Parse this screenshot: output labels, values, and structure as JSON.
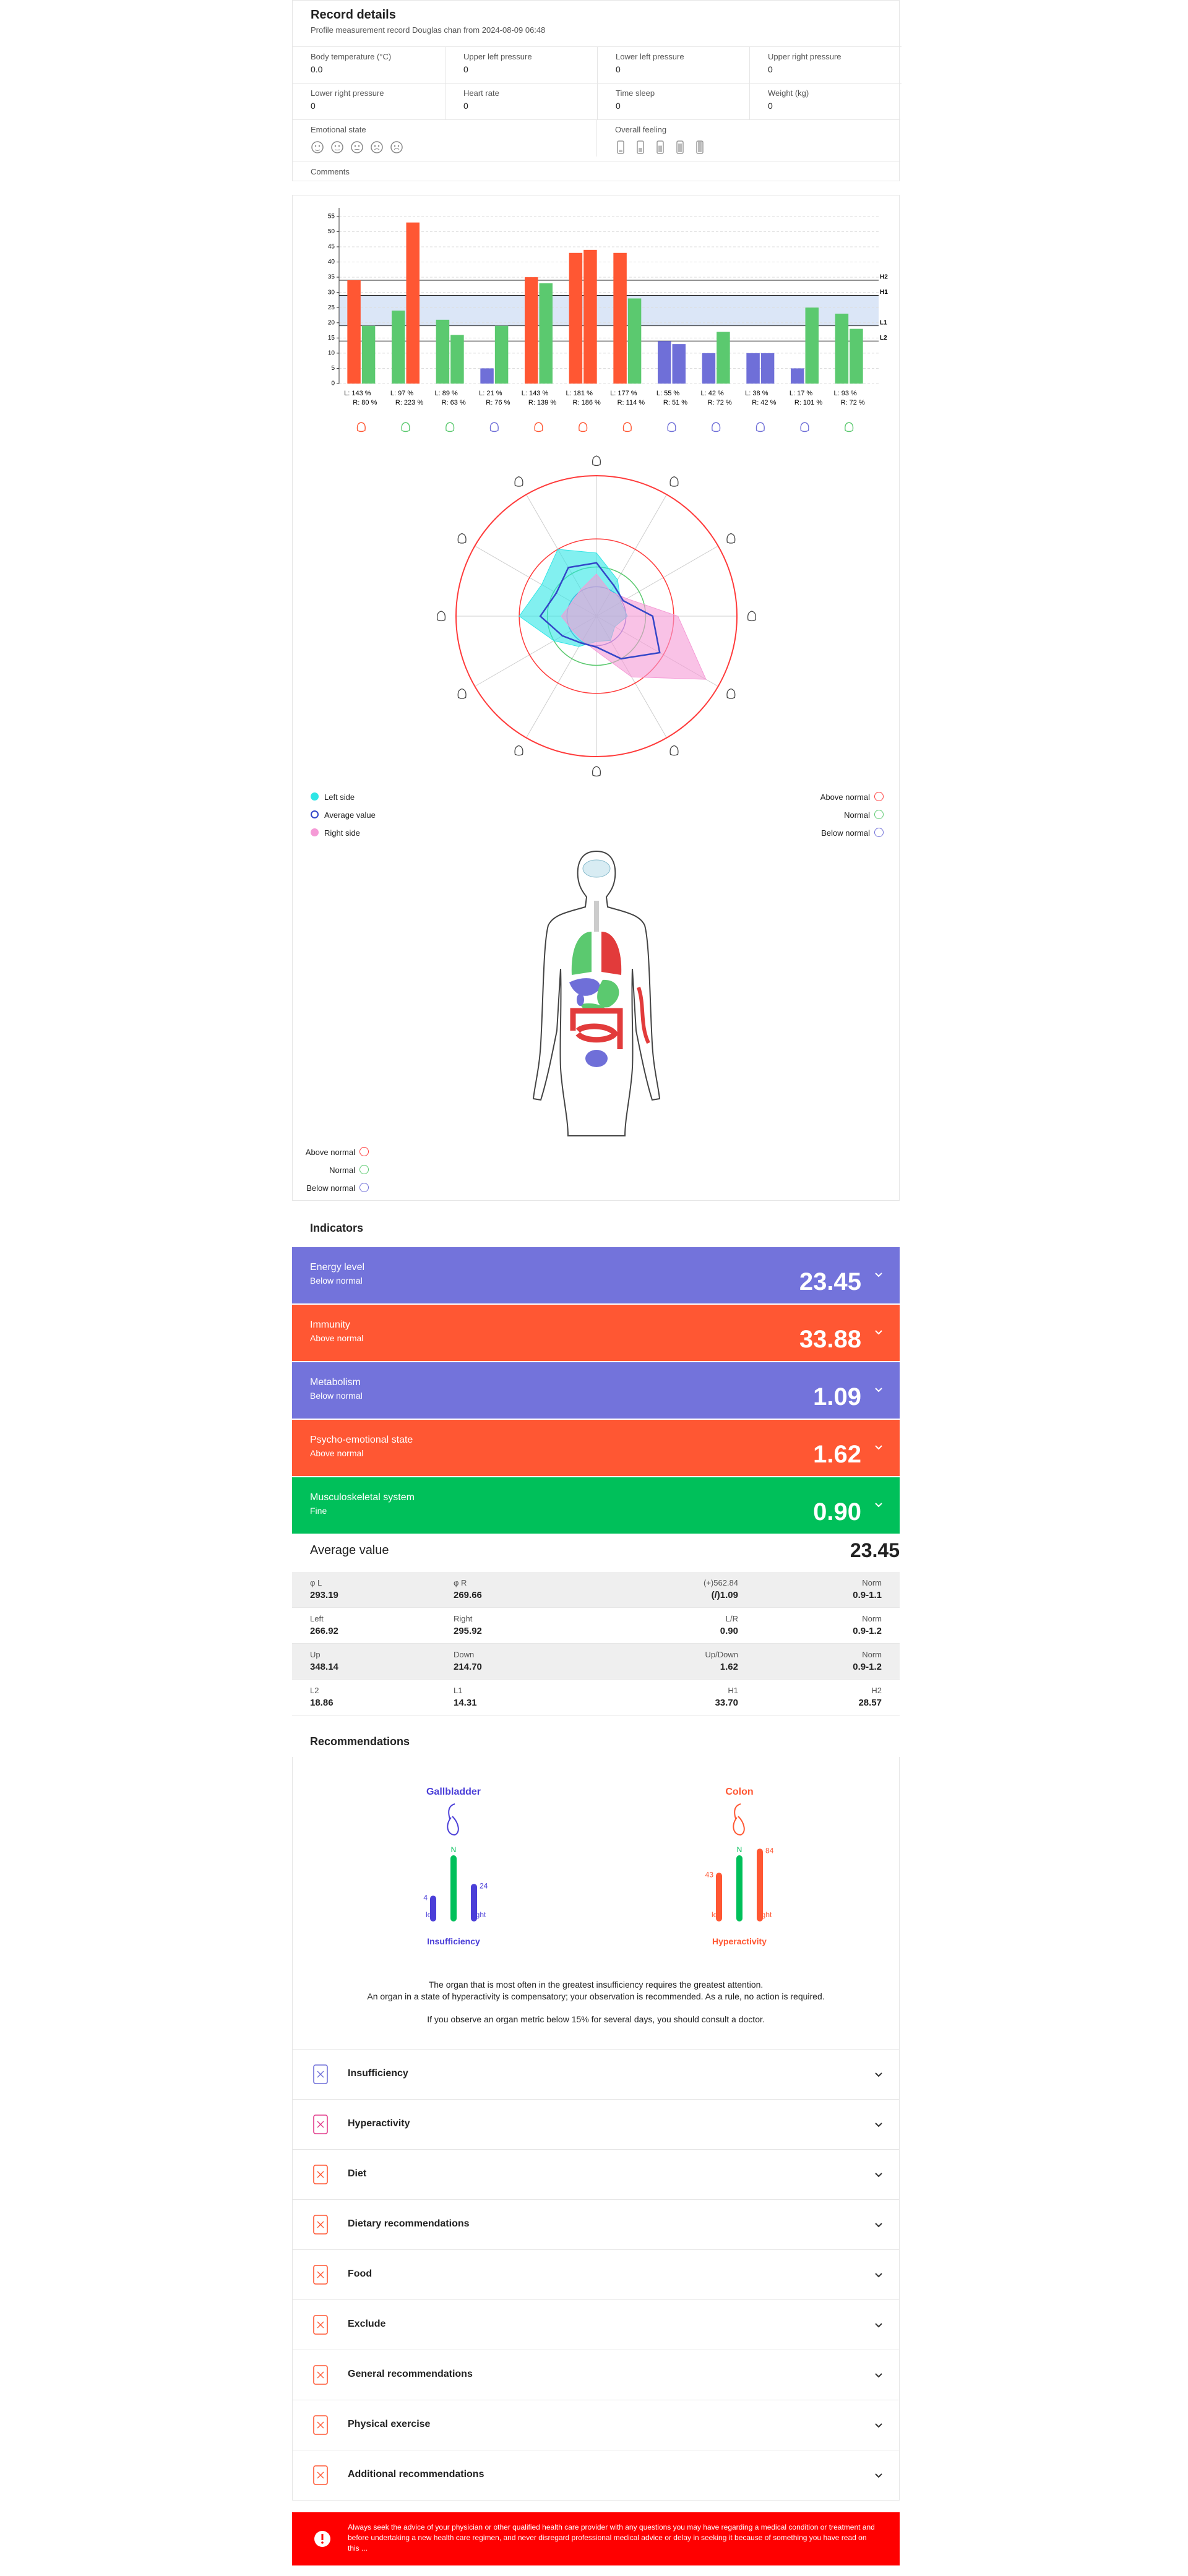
{
  "record": {
    "title": "Record details",
    "subtitle": "Profile measurement record Douglas chan from 2024-08-09 06:48",
    "fields": [
      {
        "label": "Body temperature (°C)",
        "value": "0.0"
      },
      {
        "label": "Upper left pressure",
        "value": "0"
      },
      {
        "label": "Lower left pressure",
        "value": "0"
      },
      {
        "label": "Upper right pressure",
        "value": "0"
      },
      {
        "label": "Lower right pressure",
        "value": "0"
      },
      {
        "label": "Heart rate",
        "value": "0"
      },
      {
        "label": "Time sleep",
        "value": "0"
      },
      {
        "label": "Weight (kg)",
        "value": "0"
      }
    ],
    "emotional_state": "Emotional state",
    "overall_feeling": "Overall feeling",
    "comments": "Comments"
  },
  "chart_data": [
    {
      "type": "bar",
      "categories": [
        [
          "L: 143 %",
          "R: 80 %"
        ],
        [
          "L: 97 %",
          "R: 223 %"
        ],
        [
          "L: 89 %",
          "R: 63 %"
        ],
        [
          "L: 21 %",
          "R: 76 %"
        ],
        [
          "L: 143 %",
          "R: 139 %"
        ],
        [
          "L: 181 %",
          "R: 186 %"
        ],
        [
          "L: 177 %",
          "R: 114 %"
        ],
        [
          "L: 55 %",
          "R: 51 %"
        ],
        [
          "L: 42 %",
          "R: 72 %"
        ],
        [
          "L: 38 %",
          "R: 42 %"
        ],
        [
          "L: 17 %",
          "R: 101 %"
        ],
        [
          "L: 93 %",
          "R: 72 %"
        ]
      ],
      "series": [
        {
          "values": [
            34,
            24,
            21,
            5,
            35,
            43,
            43,
            14,
            10,
            10,
            5,
            23
          ],
          "colors": [
            "#ff5733",
            "#5bc96f",
            "#5bc96f",
            "#6f6fd8",
            "#ff5733",
            "#ff5733",
            "#ff5733",
            "#6f6fd8",
            "#6f6fd8",
            "#6f6fd8",
            "#6f6fd8",
            "#5bc96f"
          ]
        },
        {
          "values": [
            19,
            53,
            16,
            19,
            33,
            44,
            28,
            13,
            17,
            10,
            25,
            18
          ],
          "colors": [
            "#5bc96f",
            "#ff5733",
            "#5bc96f",
            "#5bc96f",
            "#5bc96f",
            "#ff5733",
            "#5bc96f",
            "#6f6fd8",
            "#5bc96f",
            "#6f6fd8",
            "#5bc96f",
            "#5bc96f"
          ]
        }
      ],
      "reference_lines": [
        {
          "label": "H2",
          "value": 34
        },
        {
          "label": "H1",
          "value": 29
        },
        {
          "label": "L1",
          "value": 19
        },
        {
          "label": "L2",
          "value": 14
        }
      ],
      "band_color": "#dbe6f7",
      "ylim": [
        0,
        57
      ],
      "yticks": [
        0,
        5,
        10,
        15,
        20,
        25,
        30,
        35,
        40,
        45,
        50,
        55
      ],
      "grid": true
    },
    {
      "type": "radar",
      "rlim": [
        0,
        100
      ],
      "axes": 12,
      "rings": [
        {
          "value": 100,
          "color": "#ff3b3b"
        },
        {
          "value": 55,
          "color": "#ff3b3b"
        },
        {
          "value": 35,
          "color": "#5bc96f"
        },
        {
          "value": 21,
          "color": "#6f6fd8"
        }
      ],
      "series": [
        {
          "name": "Left side",
          "color": "#2ee6e6",
          "values": [
            45,
            30,
            20,
            22,
            15,
            20,
            18,
            25,
            35,
            55,
            45,
            55
          ]
        },
        {
          "name": "Average value",
          "color": "#3346c8",
          "values": [
            38,
            25,
            22,
            40,
            52,
            35,
            22,
            22,
            28,
            40,
            33,
            40
          ]
        },
        {
          "name": "Right side",
          "color": "#f59ad6",
          "values": [
            30,
            20,
            25,
            58,
            90,
            50,
            25,
            20,
            20,
            25,
            20,
            22
          ]
        }
      ],
      "ring_legend": [
        {
          "name": "Above normal",
          "color": "#ff3b3b"
        },
        {
          "name": "Normal",
          "color": "#5bc96f"
        },
        {
          "name": "Below normal",
          "color": "#6f6fd8"
        }
      ]
    }
  ],
  "indicators": {
    "title": "Indicators",
    "items": [
      {
        "name": "Energy level",
        "status": "Below normal",
        "value": "23.45",
        "color": "#7373db"
      },
      {
        "name": "Immunity",
        "status": "Above normal",
        "value": "33.88",
        "color": "#ff5733"
      },
      {
        "name": "Metabolism",
        "status": "Below normal",
        "value": "1.09",
        "color": "#7373db"
      },
      {
        "name": "Psycho-emotional state",
        "status": "Above normal",
        "value": "1.62",
        "color": "#ff5733"
      },
      {
        "name": "Musculoskeletal system",
        "status": "Fine",
        "value": "0.90",
        "color": "#00c05a"
      }
    ],
    "average": {
      "label": "Average value",
      "value": "23.45"
    },
    "table": [
      [
        {
          "label": "φ L",
          "value": "293.19"
        },
        {
          "label": "φ R",
          "value": "269.66"
        },
        {
          "label": "(+)562.84",
          "value": "(/)1.09"
        },
        {
          "label": "Norm",
          "value": "0.9-1.1"
        }
      ],
      [
        {
          "label": "Left",
          "value": "266.92"
        },
        {
          "label": "Right",
          "value": "295.92"
        },
        {
          "label": "L/R",
          "value": "0.90"
        },
        {
          "label": "Norm",
          "value": "0.9-1.2"
        }
      ],
      [
        {
          "label": "Up",
          "value": "348.14"
        },
        {
          "label": "Down",
          "value": "214.70"
        },
        {
          "label": "Up/Down",
          "value": "1.62"
        },
        {
          "label": "Norm",
          "value": "0.9-1.2"
        }
      ],
      [
        {
          "label": "L2",
          "value": "18.86"
        },
        {
          "label": "L1",
          "value": "14.31"
        },
        {
          "label": "H1",
          "value": "33.70"
        },
        {
          "label": "H2",
          "value": "28.57"
        }
      ]
    ]
  },
  "recommendations": {
    "title": "Recommendations",
    "organs": [
      {
        "name": "Gallbladder",
        "color": "#4b3fd8",
        "left": 4,
        "right": 24,
        "left_label": "left",
        "normal_label": "N",
        "right_label": "right",
        "status": "Insufficiency"
      },
      {
        "name": "Colon",
        "color": "#ff5733",
        "left": 43,
        "right": 84,
        "left_label": "left",
        "normal_label": "N",
        "right_label": "right",
        "status": "Hyperactivity"
      }
    ],
    "paragraphs": [
      "The organ that is most often in the greatest insufficiency requires the greatest attention.",
      "An organ in a state of hyperactivity is compensatory; your observation is recommended. As a rule, no action is required.",
      "If you observe an organ metric below 15% for several days, you should consult a doctor."
    ],
    "sections": [
      "Insufficiency",
      "Hyperactivity",
      "Diet",
      "Dietary recommendations",
      "Food",
      "Exclude",
      "General recommendations",
      "Physical exercise",
      "Additional recommendations"
    ],
    "warning": "Always seek the advice of your physician or other qualified health care provider with any questions you may have regarding a medical condition or treatment and before undertaking a new health care regimen, and never disregard professional medical advice or delay in seeking it because of something you have read on this ..."
  }
}
